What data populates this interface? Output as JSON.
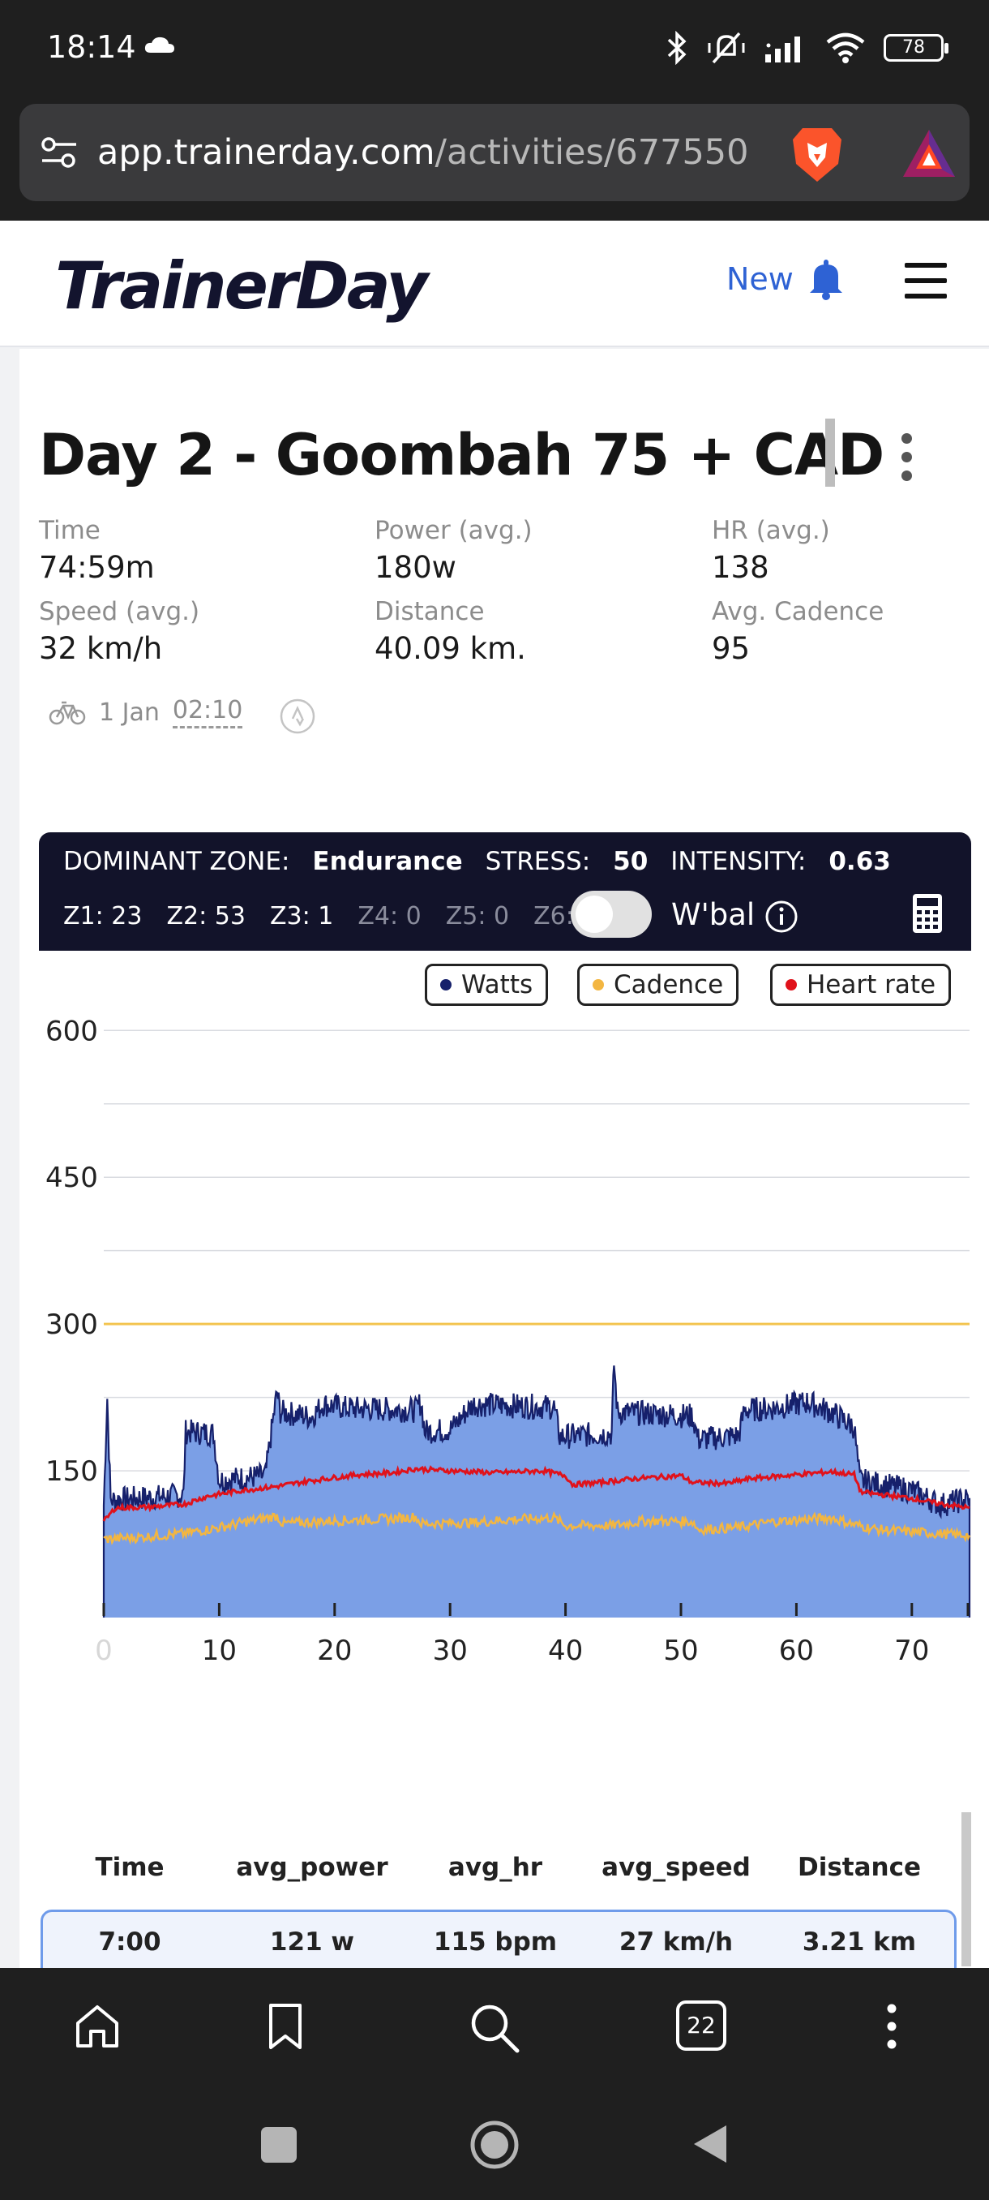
{
  "status_bar": {
    "time": "18:14",
    "battery": "78"
  },
  "browser": {
    "url_host": "app.trainerday.com",
    "url_path": "/activities/677550",
    "tab_count": "22"
  },
  "header": {
    "logo": "TrainerDay",
    "new_label": "New"
  },
  "activity": {
    "title": "Day 2 - Goombah 75 + CAD",
    "stats": [
      {
        "label": "Time",
        "value": "74:59m"
      },
      {
        "label": "Power (avg.)",
        "value": "180w"
      },
      {
        "label": "HR (avg.)",
        "value": "138"
      },
      {
        "label": "Speed (avg.)",
        "value": "32 km/h"
      },
      {
        "label": "Distance",
        "value": "40.09 km."
      },
      {
        "label": "Avg. Cadence",
        "value": "95"
      }
    ],
    "date": "1 Jan",
    "start_time": "02:10"
  },
  "zones": {
    "dominant_label": "DOMINANT ZONE:",
    "dominant_value": "Endurance",
    "stress_label": "STRESS:",
    "stress_value": "50",
    "intensity_label": "INTENSITY:",
    "intensity_value": "0.63",
    "z1": "Z1: 23",
    "z2": "Z2: 53",
    "z3": "Z3: 1",
    "z4": "Z4: 0",
    "z5": "Z5: 0",
    "z6": "Z6: 0",
    "wbal_label": "W'bal"
  },
  "legend": {
    "watts": "Watts",
    "cadence": "Cadence",
    "heart_rate": "Heart rate"
  },
  "colors": {
    "watts_fill": "#7b9fe6",
    "watts_line": "#16206b",
    "cadence": "#f3b641",
    "heart_rate": "#e0121b",
    "ftp_line": "#f3c44f"
  },
  "chart_data": {
    "type": "area",
    "x_unit": "minutes",
    "xlim": [
      0,
      75
    ],
    "ylim": [
      0,
      640
    ],
    "y_ticks": [
      150,
      300,
      450,
      600
    ],
    "x_ticks": [
      0,
      10,
      20,
      30,
      40,
      50,
      60,
      70
    ],
    "reference_line": 300,
    "series": [
      {
        "name": "Watts",
        "points": [
          [
            0,
            115
          ],
          [
            0.3,
            225
          ],
          [
            0.6,
            120
          ],
          [
            3,
            122
          ],
          [
            6.9,
            125
          ],
          [
            7.1,
            190
          ],
          [
            9.5,
            188
          ],
          [
            10,
            140
          ],
          [
            14,
            145
          ],
          [
            15,
            230
          ],
          [
            15.3,
            210
          ],
          [
            18,
            205
          ],
          [
            19,
            218
          ],
          [
            21,
            214
          ],
          [
            27,
            212
          ],
          [
            27.5,
            220
          ],
          [
            27.8,
            190
          ],
          [
            30,
            192
          ],
          [
            32,
            218
          ],
          [
            39,
            215
          ],
          [
            39.5,
            185
          ],
          [
            44,
            188
          ],
          [
            44.2,
            260
          ],
          [
            44.5,
            210
          ],
          [
            51,
            206
          ],
          [
            51.5,
            182
          ],
          [
            55,
            186
          ],
          [
            55.5,
            212
          ],
          [
            58,
            214
          ],
          [
            61,
            220
          ],
          [
            63,
            210
          ],
          [
            65,
            195
          ],
          [
            65.5,
            140
          ],
          [
            70,
            130
          ],
          [
            72.5,
            115
          ],
          [
            75,
            122
          ]
        ]
      },
      {
        "name": "Heart rate",
        "points": [
          [
            0,
            98
          ],
          [
            1,
            112
          ],
          [
            4,
            113
          ],
          [
            7,
            116
          ],
          [
            9,
            124
          ],
          [
            12,
            130
          ],
          [
            15,
            134
          ],
          [
            18,
            140
          ],
          [
            22,
            146
          ],
          [
            25,
            148
          ],
          [
            27,
            152
          ],
          [
            30,
            150
          ],
          [
            34,
            148
          ],
          [
            38,
            150
          ],
          [
            40,
            145
          ],
          [
            40.6,
            136
          ],
          [
            43,
            138
          ],
          [
            46,
            142
          ],
          [
            50,
            145
          ],
          [
            51,
            138
          ],
          [
            54,
            137
          ],
          [
            56,
            142
          ],
          [
            60,
            146
          ],
          [
            63,
            149
          ],
          [
            65,
            146
          ],
          [
            65.6,
            128
          ],
          [
            70,
            122
          ],
          [
            72,
            117
          ],
          [
            75,
            112
          ]
        ]
      },
      {
        "name": "Cadence",
        "points": [
          [
            0,
            80
          ],
          [
            3,
            82
          ],
          [
            7,
            86
          ],
          [
            10,
            92
          ],
          [
            12,
            97
          ],
          [
            15,
            104
          ],
          [
            15.5,
            96
          ],
          [
            20,
            99
          ],
          [
            25,
            101
          ],
          [
            27,
            103
          ],
          [
            27.5,
            96
          ],
          [
            32,
            97
          ],
          [
            35,
            100
          ],
          [
            39,
            102
          ],
          [
            40,
            94
          ],
          [
            44,
            94
          ],
          [
            47,
            99
          ],
          [
            51,
            98
          ],
          [
            51.5,
            90
          ],
          [
            55,
            92
          ],
          [
            58,
            98
          ],
          [
            63,
            102
          ],
          [
            65,
            95
          ],
          [
            67,
            90
          ],
          [
            72,
            86
          ],
          [
            75,
            84
          ]
        ]
      }
    ]
  },
  "table": {
    "columns": [
      "Time",
      "avg_power",
      "avg_hr",
      "avg_speed",
      "Distance"
    ],
    "rows": [
      [
        "7:00",
        "121 w",
        "115 bpm",
        "27 km/h",
        "3.21 km"
      ]
    ]
  }
}
